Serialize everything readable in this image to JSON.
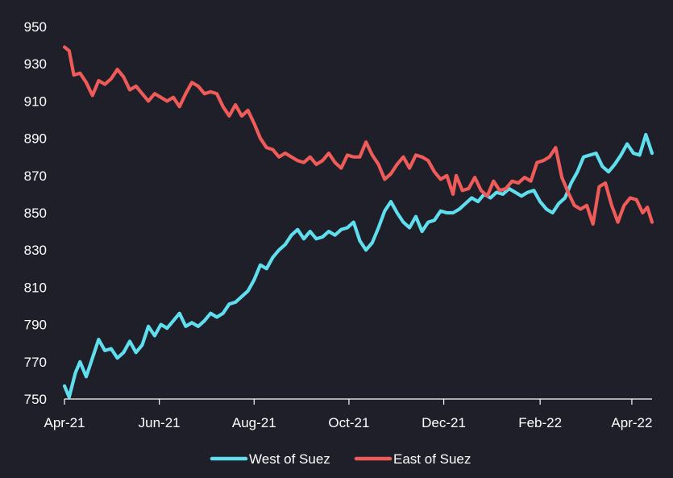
{
  "chart_data": {
    "type": "line",
    "title": "",
    "xlabel": "",
    "ylabel": "",
    "ylim": [
      750,
      950
    ],
    "yticks": [
      750,
      770,
      790,
      810,
      830,
      850,
      870,
      890,
      910,
      930,
      950
    ],
    "x_tick_labels": [
      "Apr-21",
      "Jun-21",
      "Aug-21",
      "Oct-21",
      "Dec-21",
      "Feb-22",
      "Apr-22"
    ],
    "x_tick_dates": [
      "2021-04-01",
      "2021-06-01",
      "2021-08-01",
      "2021-10-01",
      "2021-12-01",
      "2022-02-01",
      "2022-04-01"
    ],
    "x_range": [
      "2021-04-01",
      "2022-04-14"
    ],
    "grid": false,
    "legend_position": "bottom",
    "series": [
      {
        "name": "West of Suez",
        "color": "#5fdfee",
        "points": [
          [
            "2021-04-01",
            757
          ],
          [
            "2021-04-04",
            751
          ],
          [
            "2021-04-08",
            764
          ],
          [
            "2021-04-11",
            770
          ],
          [
            "2021-04-15",
            762
          ],
          [
            "2021-04-19",
            772
          ],
          [
            "2021-04-23",
            782
          ],
          [
            "2021-04-27",
            776
          ],
          [
            "2021-05-01",
            777
          ],
          [
            "2021-05-05",
            772
          ],
          [
            "2021-05-09",
            775
          ],
          [
            "2021-05-13",
            781
          ],
          [
            "2021-05-17",
            775
          ],
          [
            "2021-05-21",
            779
          ],
          [
            "2021-05-25",
            789
          ],
          [
            "2021-05-29",
            784
          ],
          [
            "2021-06-02",
            790
          ],
          [
            "2021-06-06",
            788
          ],
          [
            "2021-06-10",
            792
          ],
          [
            "2021-06-14",
            796
          ],
          [
            "2021-06-18",
            789
          ],
          [
            "2021-06-22",
            791
          ],
          [
            "2021-06-26",
            789
          ],
          [
            "2021-06-30",
            792
          ],
          [
            "2021-07-04",
            796
          ],
          [
            "2021-07-08",
            794
          ],
          [
            "2021-07-12",
            796
          ],
          [
            "2021-07-16",
            801
          ],
          [
            "2021-07-20",
            802
          ],
          [
            "2021-07-24",
            805
          ],
          [
            "2021-07-28",
            808
          ],
          [
            "2021-08-01",
            814
          ],
          [
            "2021-08-05",
            822
          ],
          [
            "2021-08-09",
            820
          ],
          [
            "2021-08-13",
            826
          ],
          [
            "2021-08-17",
            830
          ],
          [
            "2021-08-21",
            833
          ],
          [
            "2021-08-25",
            838
          ],
          [
            "2021-08-29",
            841
          ],
          [
            "2021-09-02",
            836
          ],
          [
            "2021-09-06",
            840
          ],
          [
            "2021-09-10",
            836
          ],
          [
            "2021-09-14",
            837
          ],
          [
            "2021-09-18",
            840
          ],
          [
            "2021-09-22",
            838
          ],
          [
            "2021-09-26",
            841
          ],
          [
            "2021-09-30",
            842
          ],
          [
            "2021-10-04",
            845
          ],
          [
            "2021-10-08",
            835
          ],
          [
            "2021-10-12",
            830
          ],
          [
            "2021-10-16",
            834
          ],
          [
            "2021-10-20",
            842
          ],
          [
            "2021-10-24",
            851
          ],
          [
            "2021-10-28",
            856
          ],
          [
            "2021-11-01",
            850
          ],
          [
            "2021-11-05",
            845
          ],
          [
            "2021-11-09",
            842
          ],
          [
            "2021-11-13",
            848
          ],
          [
            "2021-11-17",
            840
          ],
          [
            "2021-11-21",
            845
          ],
          [
            "2021-11-25",
            846
          ],
          [
            "2021-11-29",
            851
          ],
          [
            "2021-12-03",
            850
          ],
          [
            "2021-12-07",
            850
          ],
          [
            "2021-12-11",
            852
          ],
          [
            "2021-12-15",
            855
          ],
          [
            "2021-12-19",
            858
          ],
          [
            "2021-12-23",
            856
          ],
          [
            "2021-12-27",
            860
          ],
          [
            "2021-12-31",
            858
          ],
          [
            "2022-01-04",
            861
          ],
          [
            "2022-01-08",
            860
          ],
          [
            "2022-01-12",
            863
          ],
          [
            "2022-01-16",
            861
          ],
          [
            "2022-01-20",
            859
          ],
          [
            "2022-01-24",
            861
          ],
          [
            "2022-01-28",
            862
          ],
          [
            "2022-02-01",
            856
          ],
          [
            "2022-02-05",
            852
          ],
          [
            "2022-02-09",
            850
          ],
          [
            "2022-02-13",
            855
          ],
          [
            "2022-02-17",
            858
          ],
          [
            "2022-02-21",
            866
          ],
          [
            "2022-02-25",
            872
          ],
          [
            "2022-03-01",
            880
          ],
          [
            "2022-03-05",
            881
          ],
          [
            "2022-03-09",
            882
          ],
          [
            "2022-03-13",
            875
          ],
          [
            "2022-03-17",
            872
          ],
          [
            "2022-03-21",
            876
          ],
          [
            "2022-03-25",
            881
          ],
          [
            "2022-03-29",
            887
          ],
          [
            "2022-04-02",
            882
          ],
          [
            "2022-04-06",
            881
          ],
          [
            "2022-04-10",
            892
          ],
          [
            "2022-04-14",
            882
          ]
        ]
      },
      {
        "name": "East of Suez",
        "color": "#ef5b58",
        "points": [
          [
            "2021-04-01",
            939
          ],
          [
            "2021-04-04",
            937
          ],
          [
            "2021-04-07",
            924
          ],
          [
            "2021-04-11",
            925
          ],
          [
            "2021-04-15",
            920
          ],
          [
            "2021-04-19",
            913
          ],
          [
            "2021-04-23",
            921
          ],
          [
            "2021-04-27",
            919
          ],
          [
            "2021-05-01",
            922
          ],
          [
            "2021-05-05",
            927
          ],
          [
            "2021-05-09",
            923
          ],
          [
            "2021-05-13",
            916
          ],
          [
            "2021-05-17",
            918
          ],
          [
            "2021-05-21",
            914
          ],
          [
            "2021-05-25",
            910
          ],
          [
            "2021-05-29",
            914
          ],
          [
            "2021-06-02",
            912
          ],
          [
            "2021-06-06",
            910
          ],
          [
            "2021-06-10",
            912
          ],
          [
            "2021-06-14",
            907
          ],
          [
            "2021-06-18",
            914
          ],
          [
            "2021-06-22",
            920
          ],
          [
            "2021-06-26",
            918
          ],
          [
            "2021-06-30",
            914
          ],
          [
            "2021-07-04",
            915
          ],
          [
            "2021-07-08",
            914
          ],
          [
            "2021-07-12",
            907
          ],
          [
            "2021-07-16",
            902
          ],
          [
            "2021-07-20",
            908
          ],
          [
            "2021-07-24",
            902
          ],
          [
            "2021-07-28",
            905
          ],
          [
            "2021-08-01",
            898
          ],
          [
            "2021-08-05",
            890
          ],
          [
            "2021-08-09",
            885
          ],
          [
            "2021-08-13",
            884
          ],
          [
            "2021-08-17",
            880
          ],
          [
            "2021-08-21",
            882
          ],
          [
            "2021-08-25",
            880
          ],
          [
            "2021-08-29",
            878
          ],
          [
            "2021-09-02",
            877
          ],
          [
            "2021-09-06",
            880
          ],
          [
            "2021-09-10",
            876
          ],
          [
            "2021-09-14",
            878
          ],
          [
            "2021-09-18",
            882
          ],
          [
            "2021-09-22",
            877
          ],
          [
            "2021-09-26",
            874
          ],
          [
            "2021-09-30",
            881
          ],
          [
            "2021-10-04",
            880
          ],
          [
            "2021-10-08",
            880
          ],
          [
            "2021-10-12",
            888
          ],
          [
            "2021-10-16",
            881
          ],
          [
            "2021-10-20",
            876
          ],
          [
            "2021-10-24",
            868
          ],
          [
            "2021-10-28",
            871
          ],
          [
            "2021-11-01",
            876
          ],
          [
            "2021-11-05",
            880
          ],
          [
            "2021-11-09",
            874
          ],
          [
            "2021-11-13",
            881
          ],
          [
            "2021-11-17",
            880
          ],
          [
            "2021-11-21",
            878
          ],
          [
            "2021-11-25",
            872
          ],
          [
            "2021-11-29",
            868
          ],
          [
            "2021-12-03",
            870
          ],
          [
            "2021-12-07",
            860
          ],
          [
            "2021-12-09",
            870
          ],
          [
            "2021-12-13",
            862
          ],
          [
            "2021-12-17",
            863
          ],
          [
            "2021-12-21",
            869
          ],
          [
            "2021-12-25",
            862
          ],
          [
            "2021-12-29",
            859
          ],
          [
            "2022-01-02",
            867
          ],
          [
            "2022-01-06",
            862
          ],
          [
            "2022-01-10",
            863
          ],
          [
            "2022-01-14",
            867
          ],
          [
            "2022-01-18",
            866
          ],
          [
            "2022-01-22",
            869
          ],
          [
            "2022-01-26",
            867
          ],
          [
            "2022-01-30",
            877
          ],
          [
            "2022-02-03",
            878
          ],
          [
            "2022-02-07",
            880
          ],
          [
            "2022-02-11",
            885
          ],
          [
            "2022-02-15",
            869
          ],
          [
            "2022-02-19",
            861
          ],
          [
            "2022-02-23",
            854
          ],
          [
            "2022-02-27",
            852
          ],
          [
            "2022-03-03",
            854
          ],
          [
            "2022-03-07",
            844
          ],
          [
            "2022-03-11",
            864
          ],
          [
            "2022-03-15",
            866
          ],
          [
            "2022-03-19",
            854
          ],
          [
            "2022-03-23",
            845
          ],
          [
            "2022-03-27",
            854
          ],
          [
            "2022-03-31",
            858
          ],
          [
            "2022-04-04",
            857
          ],
          [
            "2022-04-08",
            850
          ],
          [
            "2022-04-11",
            853
          ],
          [
            "2022-04-14",
            845
          ]
        ]
      }
    ]
  }
}
